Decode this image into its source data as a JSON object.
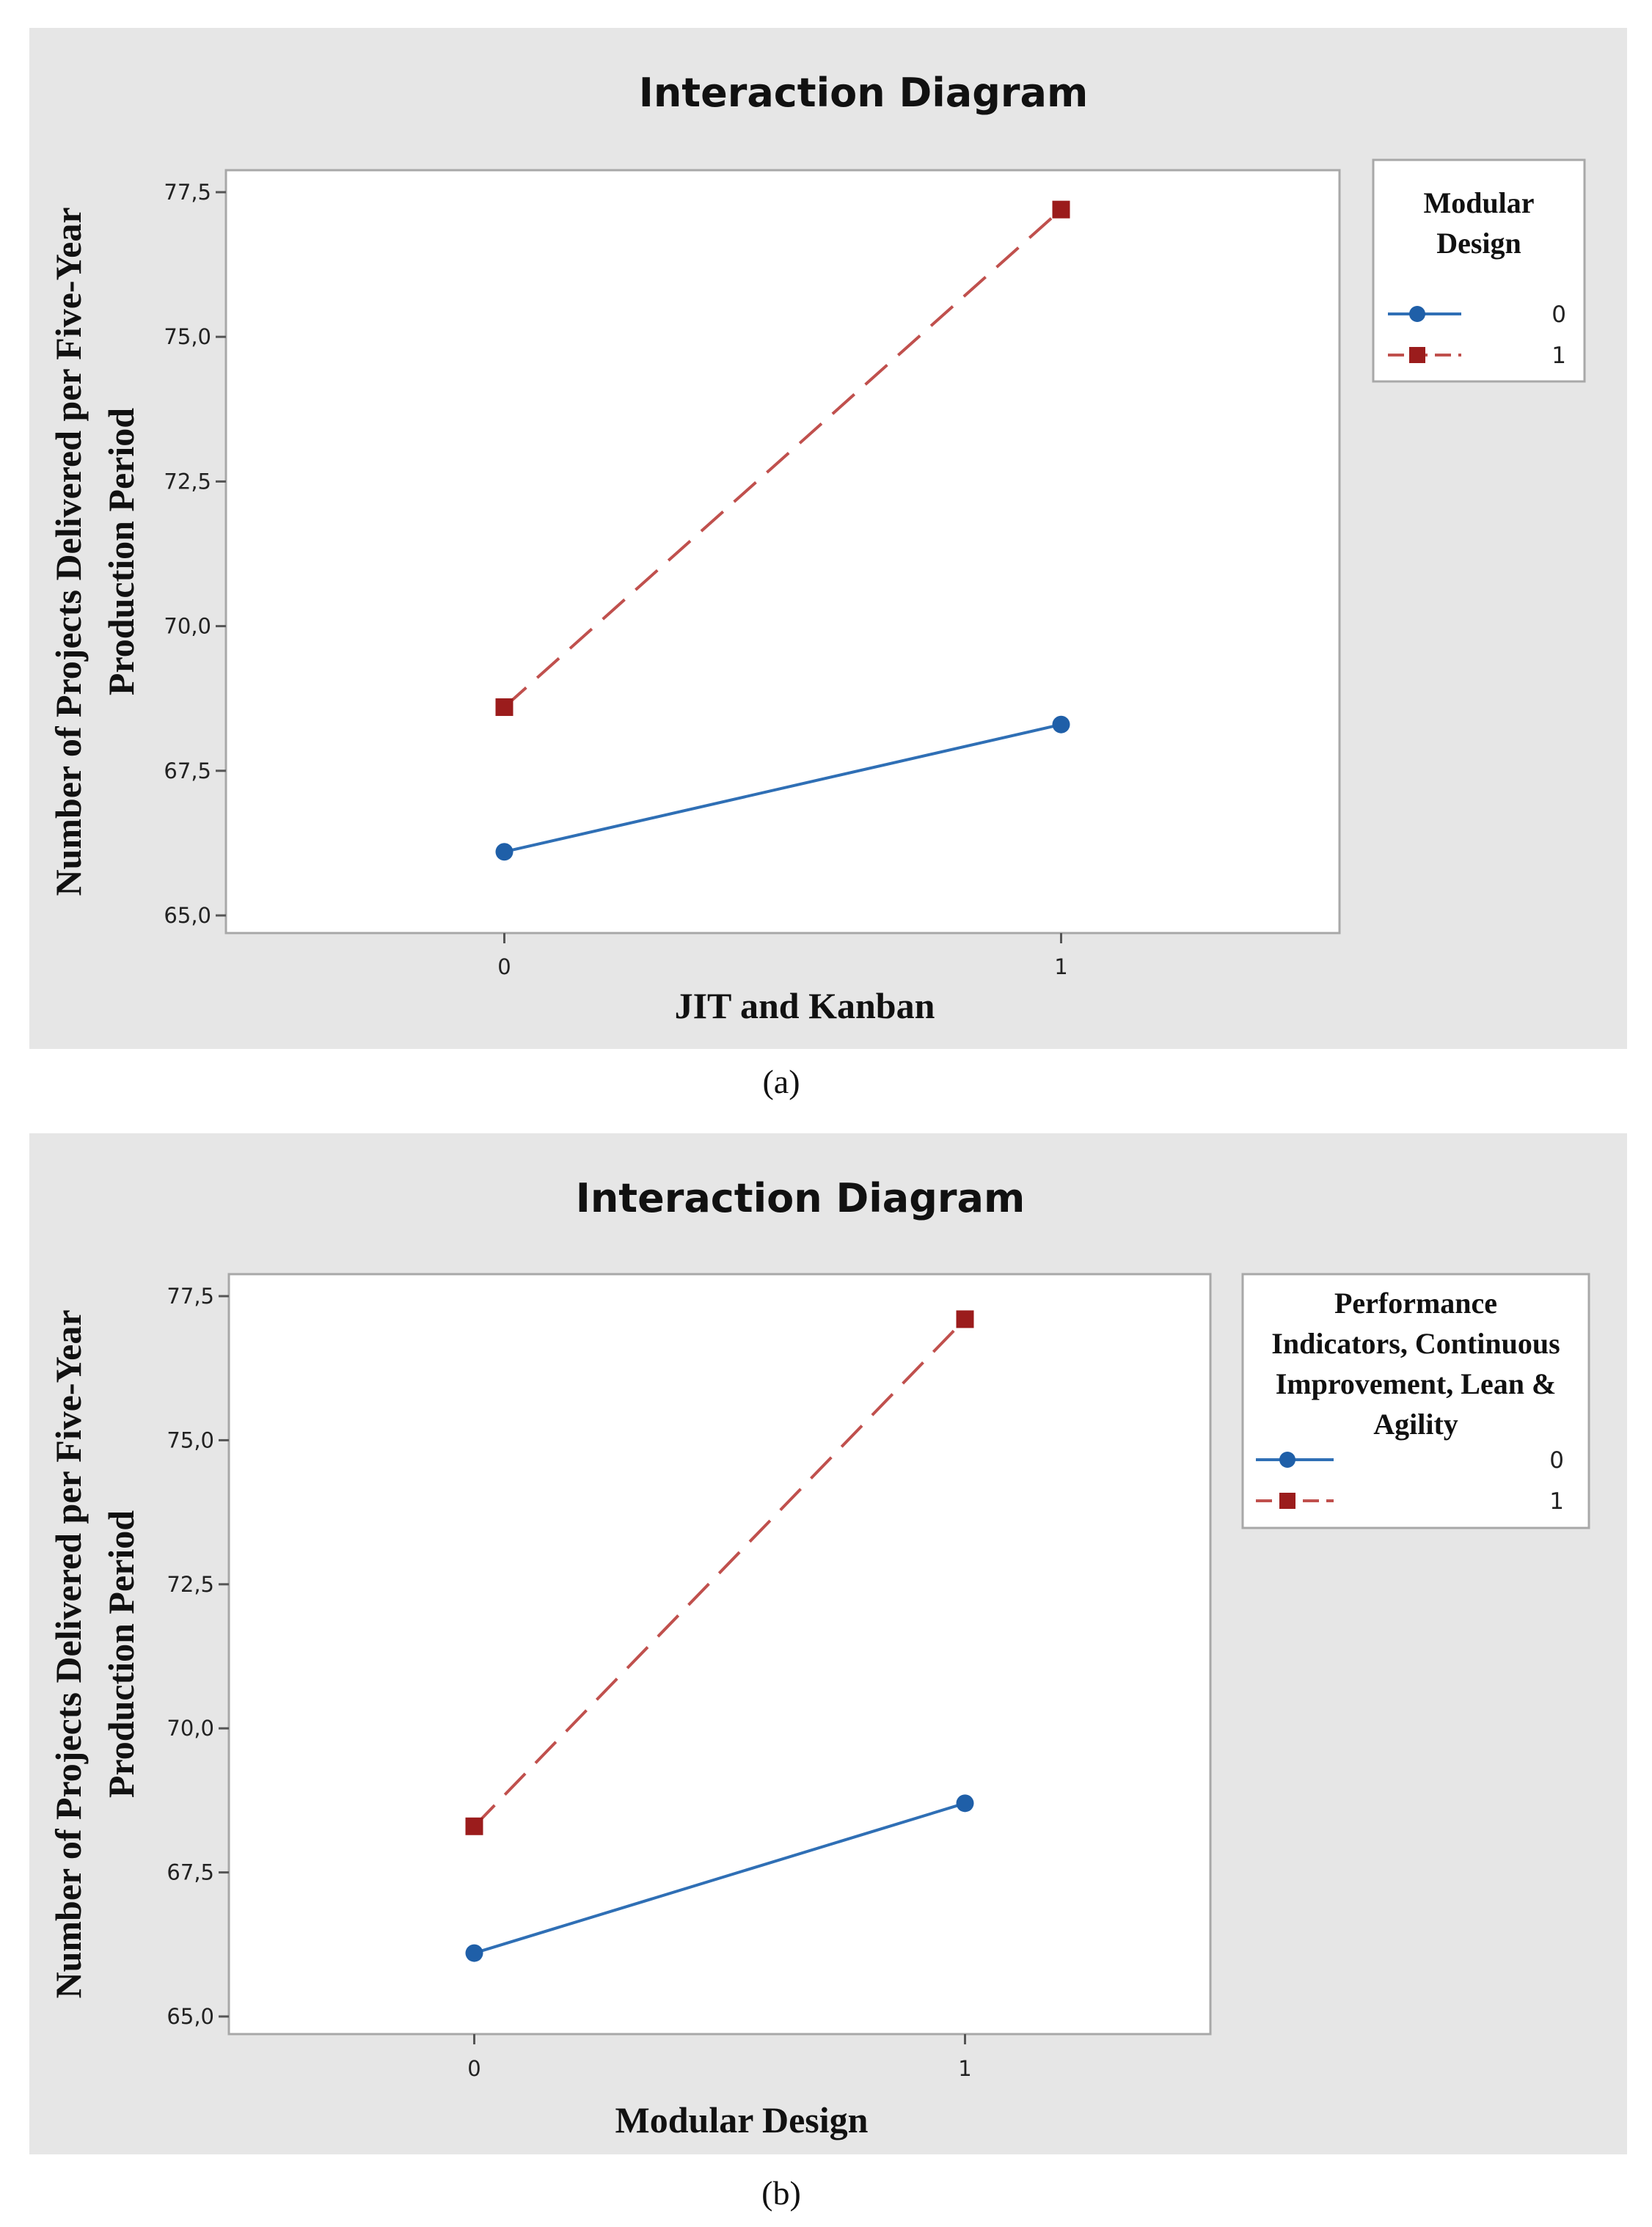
{
  "chart_data": [
    {
      "type": "line",
      "title": "Interaction Diagram",
      "xlabel": "JIT and Kanban",
      "ylabel": [
        "Number of Projects Delivered per Five-Year",
        "Production Period"
      ],
      "categories": [
        "0",
        "1"
      ],
      "yticks": [
        "65,0",
        "67,5",
        "70,0",
        "72,5",
        "75,0",
        "77,5"
      ],
      "ylim": [
        65,
        77.5
      ],
      "legend_title": [
        "Modular",
        "Design"
      ],
      "series": [
        {
          "name": "0",
          "values": [
            66.1,
            68.3
          ],
          "color": "#1f5fa8",
          "marker": "circle",
          "dash": "solid"
        },
        {
          "name": "1",
          "values": [
            68.6,
            77.2
          ],
          "color": "#9b1c1c",
          "marker": "square",
          "dash": "dashed"
        }
      ],
      "caption": "(a)"
    },
    {
      "type": "line",
      "title": "Interaction Diagram",
      "xlabel": "Modular Design",
      "ylabel": [
        "Number of Projects Delivered per Five-Year",
        "Production Period"
      ],
      "categories": [
        "0",
        "1"
      ],
      "yticks": [
        "65,0",
        "67,5",
        "70,0",
        "72,5",
        "75,0",
        "77,5"
      ],
      "ylim": [
        65,
        77.5
      ],
      "legend_title": [
        "Performance",
        "Indicators, Continuous",
        "Improvement, Lean &",
        "Agility"
      ],
      "series": [
        {
          "name": "0",
          "values": [
            66.1,
            68.7
          ],
          "color": "#1f5fa8",
          "marker": "circle",
          "dash": "solid"
        },
        {
          "name": "1",
          "values": [
            68.3,
            77.1
          ],
          "color": "#9b1c1c",
          "marker": "square",
          "dash": "dashed"
        }
      ],
      "caption": "(b)"
    }
  ]
}
